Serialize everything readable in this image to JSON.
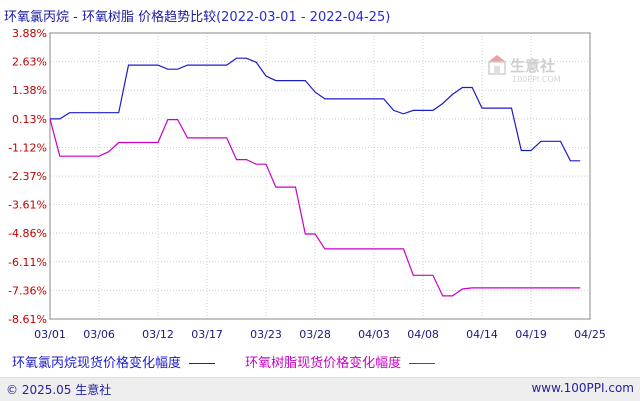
{
  "header": {
    "title_main": "环氧氯丙烷 - 环氧树脂 价格趋势比较",
    "title_range": "(2022-03-01 - 2022-04-25)"
  },
  "watermark": {
    "brand": "生意社",
    "url": "100PPI.COM"
  },
  "footer": {
    "copyright": "© 2025.05 生意社",
    "site": "www.100PPI.com"
  },
  "colors": {
    "series1": "#1c1cc8",
    "series2": "#c800c8",
    "axis_text": "#c00000",
    "grid": "#cfcfcf"
  },
  "chart_data": {
    "type": "line",
    "title": "环氧氯丙烷 - 环氧树脂 价格趋势比较",
    "ylabel": "",
    "xlabel": "",
    "ylim": [
      -8.61,
      3.88
    ],
    "yticks": [
      3.88,
      2.63,
      1.38,
      0.13,
      -1.12,
      -2.37,
      -3.61,
      -4.86,
      -6.11,
      -7.36,
      -8.61
    ],
    "ytick_labels": [
      "3.88%",
      "2.63%",
      "1.38%",
      "0.13%",
      "-1.12%",
      "-2.37%",
      "-3.61%",
      "-4.86%",
      "-6.11%",
      "-7.36%",
      "-8.61%"
    ],
    "xtick_labels": [
      "03/01",
      "03/06",
      "03/12",
      "03/17",
      "03/23",
      "03/28",
      "04/03",
      "04/08",
      "04/14",
      "04/19",
      "04/25"
    ],
    "xtick_day_index": [
      0,
      5,
      11,
      16,
      22,
      27,
      33,
      38,
      44,
      49,
      55
    ],
    "x_day_count": 55,
    "grid": true,
    "legend_position": "bottom",
    "series": [
      {
        "name": "环氧氯丙烷现货价格变化幅度",
        "points": [
          [
            0,
            0.13
          ],
          [
            1,
            0.13
          ],
          [
            2,
            0.4
          ],
          [
            3,
            0.4
          ],
          [
            4,
            0.4
          ],
          [
            5,
            0.4
          ],
          [
            6,
            0.4
          ],
          [
            7,
            0.4
          ],
          [
            8,
            2.48
          ],
          [
            9,
            2.48
          ],
          [
            10,
            2.48
          ],
          [
            11,
            2.48
          ],
          [
            12,
            2.3
          ],
          [
            13,
            2.3
          ],
          [
            14,
            2.48
          ],
          [
            15,
            2.48
          ],
          [
            16,
            2.48
          ],
          [
            17,
            2.48
          ],
          [
            18,
            2.48
          ],
          [
            19,
            2.78
          ],
          [
            20,
            2.78
          ],
          [
            21,
            2.6
          ],
          [
            22,
            2.0
          ],
          [
            23,
            1.8
          ],
          [
            24,
            1.8
          ],
          [
            25,
            1.8
          ],
          [
            26,
            1.8
          ],
          [
            27,
            1.3
          ],
          [
            28,
            1.0
          ],
          [
            29,
            1.0
          ],
          [
            30,
            1.0
          ],
          [
            31,
            1.0
          ],
          [
            32,
            1.0
          ],
          [
            33,
            1.0
          ],
          [
            34,
            1.0
          ],
          [
            35,
            0.5
          ],
          [
            36,
            0.35
          ],
          [
            37,
            0.5
          ],
          [
            38,
            0.5
          ],
          [
            39,
            0.5
          ],
          [
            40,
            0.8
          ],
          [
            41,
            1.2
          ],
          [
            42,
            1.5
          ],
          [
            43,
            1.5
          ],
          [
            44,
            0.6
          ],
          [
            45,
            0.6
          ],
          [
            46,
            0.6
          ],
          [
            47,
            0.6
          ],
          [
            48,
            -1.25
          ],
          [
            49,
            -1.25
          ],
          [
            50,
            -0.85
          ],
          [
            51,
            -0.85
          ],
          [
            52,
            -0.85
          ],
          [
            53,
            -1.7
          ],
          [
            54,
            -1.7
          ]
        ]
      },
      {
        "name": "环氧树脂现货价格变化幅度",
        "points": [
          [
            0,
            0.13
          ],
          [
            1,
            -1.5
          ],
          [
            2,
            -1.5
          ],
          [
            3,
            -1.5
          ],
          [
            4,
            -1.5
          ],
          [
            5,
            -1.5
          ],
          [
            6,
            -1.3
          ],
          [
            7,
            -0.9
          ],
          [
            8,
            -0.9
          ],
          [
            9,
            -0.9
          ],
          [
            10,
            -0.9
          ],
          [
            11,
            -0.9
          ],
          [
            12,
            0.1
          ],
          [
            13,
            0.1
          ],
          [
            14,
            -0.7
          ],
          [
            15,
            -0.7
          ],
          [
            16,
            -0.7
          ],
          [
            17,
            -0.7
          ],
          [
            18,
            -0.7
          ],
          [
            19,
            -1.65
          ],
          [
            20,
            -1.65
          ],
          [
            21,
            -1.85
          ],
          [
            22,
            -1.85
          ],
          [
            23,
            -2.85
          ],
          [
            24,
            -2.85
          ],
          [
            25,
            -2.85
          ],
          [
            26,
            -4.9
          ],
          [
            27,
            -4.9
          ],
          [
            28,
            -5.55
          ],
          [
            29,
            -5.55
          ],
          [
            30,
            -5.55
          ],
          [
            31,
            -5.55
          ],
          [
            32,
            -5.55
          ],
          [
            33,
            -5.55
          ],
          [
            34,
            -5.55
          ],
          [
            35,
            -5.55
          ],
          [
            36,
            -5.55
          ],
          [
            37,
            -6.7
          ],
          [
            38,
            -6.7
          ],
          [
            39,
            -6.7
          ],
          [
            40,
            -7.6
          ],
          [
            41,
            -7.6
          ],
          [
            42,
            -7.3
          ],
          [
            43,
            -7.25
          ],
          [
            44,
            -7.25
          ],
          [
            45,
            -7.25
          ],
          [
            46,
            -7.25
          ],
          [
            47,
            -7.25
          ],
          [
            48,
            -7.25
          ],
          [
            49,
            -7.25
          ],
          [
            50,
            -7.25
          ],
          [
            51,
            -7.25
          ],
          [
            52,
            -7.25
          ],
          [
            53,
            -7.25
          ],
          [
            54,
            -7.25
          ]
        ]
      }
    ]
  }
}
